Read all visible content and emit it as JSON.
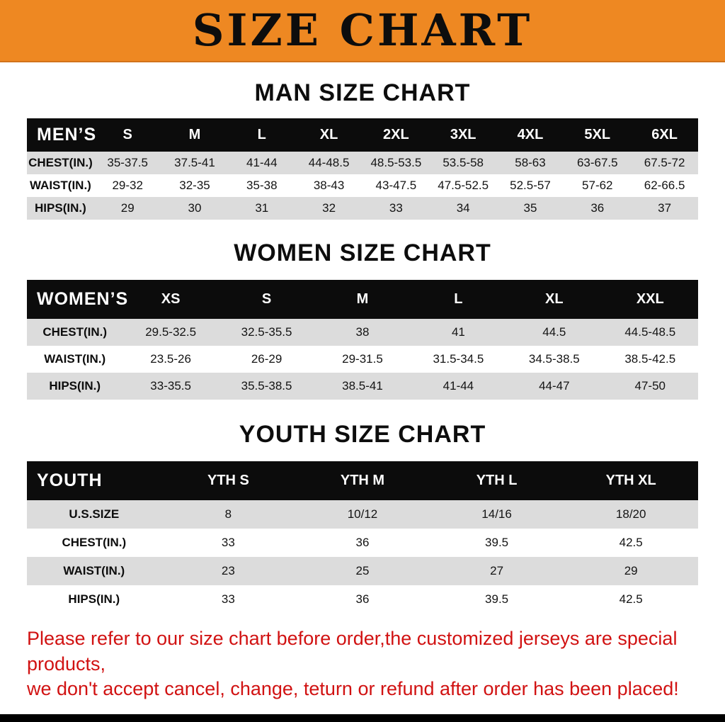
{
  "banner": {
    "title": "SIZE CHART",
    "bg_color": "#ee8822"
  },
  "sections": [
    {
      "id": "men",
      "heading": "MAN SIZE CHART",
      "table": {
        "header": [
          "MEN’S",
          "S",
          "M",
          "L",
          "XL",
          "2XL",
          "3XL",
          "4XL",
          "5XL",
          "6XL"
        ],
        "rows": [
          [
            "CHEST(IN.)",
            "35-37.5",
            "37.5-41",
            "41-44",
            "44-48.5",
            "48.5-53.5",
            "53.5-58",
            "58-63",
            "63-67.5",
            "67.5-72"
          ],
          [
            "WAIST(IN.)",
            "29-32",
            "32-35",
            "35-38",
            "38-43",
            "43-47.5",
            "47.5-52.5",
            "52.5-57",
            "57-62",
            "62-66.5"
          ],
          [
            "HIPS(IN.)",
            "29",
            "30",
            "31",
            "32",
            "33",
            "34",
            "35",
            "36",
            "37"
          ]
        ]
      }
    },
    {
      "id": "women",
      "heading": "WOMEN SIZE CHART",
      "table": {
        "header": [
          "WOMEN’S",
          "XS",
          "S",
          "M",
          "L",
          "XL",
          "XXL"
        ],
        "rows": [
          [
            "CHEST(IN.)",
            "29.5-32.5",
            "32.5-35.5",
            "38",
            "41",
            "44.5",
            "44.5-48.5"
          ],
          [
            "WAIST(IN.)",
            "23.5-26",
            "26-29",
            "29-31.5",
            "31.5-34.5",
            "34.5-38.5",
            "38.5-42.5"
          ],
          [
            "HIPS(IN.)",
            "33-35.5",
            "35.5-38.5",
            "38.5-41",
            "41-44",
            "44-47",
            "47-50"
          ]
        ]
      }
    },
    {
      "id": "youth",
      "heading": "YOUTH SIZE CHART",
      "table": {
        "header": [
          "YOUTH",
          "YTH S",
          "YTH M",
          "YTH L",
          "YTH XL"
        ],
        "rows": [
          [
            "U.S.SIZE",
            "8",
            "10/12",
            "14/16",
            "18/20"
          ],
          [
            "CHEST(IN.)",
            "33",
            "36",
            "39.5",
            "42.5"
          ],
          [
            "WAIST(IN.)",
            "23",
            "25",
            "27",
            "29"
          ],
          [
            "HIPS(IN.)",
            "33",
            "36",
            "39.5",
            "42.5"
          ]
        ]
      }
    }
  ],
  "footer_note": {
    "line1": "Please refer to our size chart before order,the customized jerseys are special products,",
    "line2": "we don't accept cancel, change, teturn or refund after order has been placed!",
    "color": "#d11212"
  }
}
